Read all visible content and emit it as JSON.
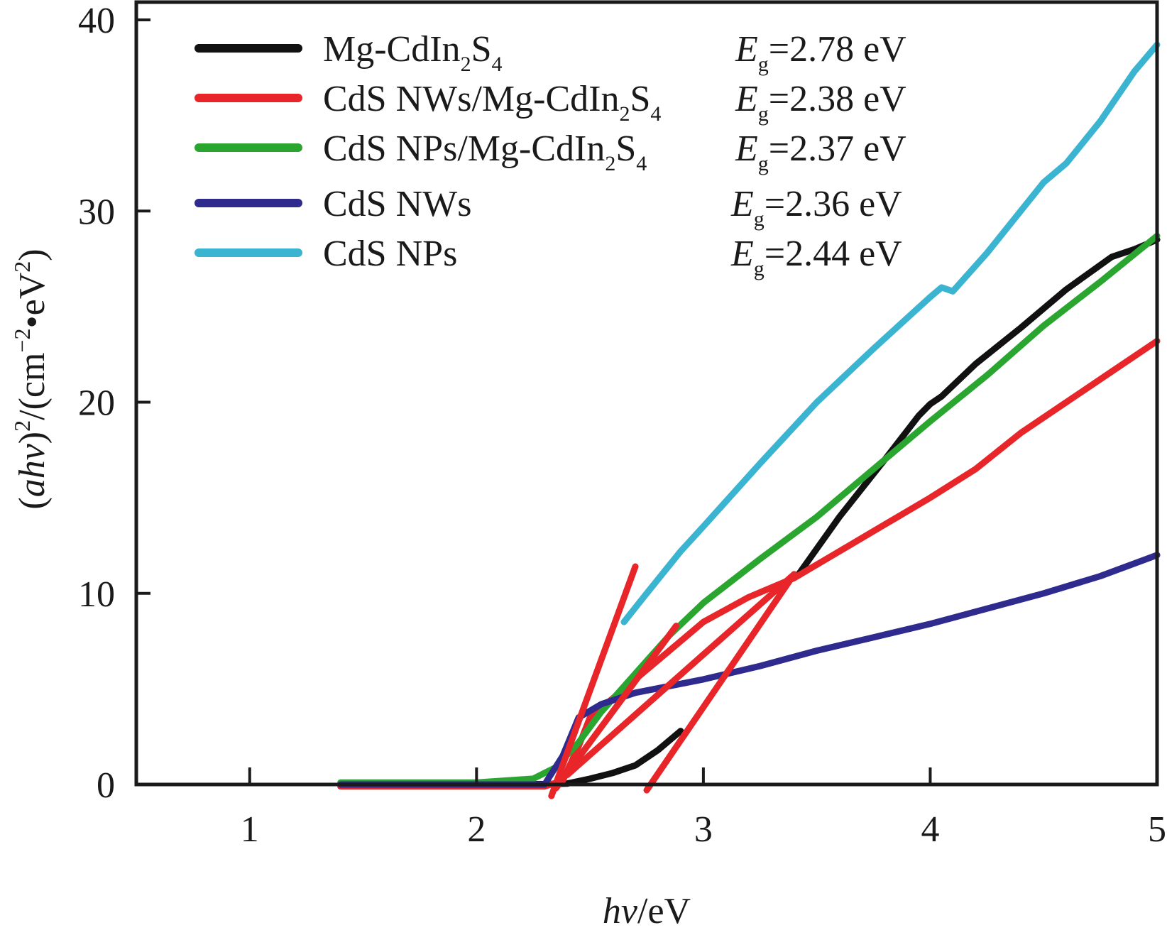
{
  "chart_data": {
    "type": "line",
    "title": "",
    "xlabel": "hv/eV",
    "xlabel_parts": {
      "italic": "hv",
      "rest": "/eV"
    },
    "ylabel": "(ahv)^2/(cm^-2·eV^2)",
    "ylabel_parts": {
      "open": "(",
      "italic": "ahv",
      "close": ")",
      "sup1": "2",
      "mid": "/(cm",
      "sup2": "−2",
      "dot": "•eV",
      "sup3": "2",
      "end": ")"
    },
    "xlim": [
      0.5,
      5
    ],
    "ylim": [
      0,
      40
    ],
    "xticks": [
      1,
      2,
      3,
      4,
      5
    ],
    "xtick_labels": [
      "1",
      "2",
      "3",
      "4",
      "5"
    ],
    "yticks": [
      0,
      10,
      20,
      30,
      40
    ],
    "ytick_labels": [
      "0",
      "10",
      "20",
      "30",
      "40"
    ],
    "grid": false,
    "legend_position": "top-left",
    "series": [
      {
        "name": "Mg-CdIn2S4",
        "label_base": "Mg-CdIn",
        "label_sub1": "2",
        "label_mid": "S",
        "label_sub2": "4",
        "label_rest": "",
        "bandgap_text": "=2.78 eV",
        "bandgap_eV": 2.78,
        "color": "#111111",
        "segments": [
          [
            [
              1.4,
              0.0
            ],
            [
              2.2,
              0.0
            ],
            [
              2.4,
              0.05
            ],
            [
              2.5,
              0.3
            ],
            [
              2.6,
              0.6
            ],
            [
              2.7,
              1.0
            ],
            [
              2.8,
              1.8
            ],
            [
              2.9,
              2.8
            ]
          ],
          [
            [
              3.42,
              11.0
            ],
            [
              3.6,
              14.0
            ],
            [
              3.8,
              17.0
            ],
            [
              3.95,
              19.3
            ],
            [
              4.0,
              19.9
            ],
            [
              4.05,
              20.3
            ],
            [
              4.2,
              22.0
            ],
            [
              4.4,
              23.9
            ],
            [
              4.6,
              25.9
            ],
            [
              4.8,
              27.6
            ],
            [
              4.9,
              28.0
            ],
            [
              5.0,
              28.5
            ]
          ]
        ]
      },
      {
        "name": "CdS NWs/Mg-CdIn2S4",
        "label_base": "CdS NWs/Mg-CdIn",
        "label_sub1": "2",
        "label_mid": "S",
        "label_sub2": "4",
        "label_rest": "",
        "bandgap_text": "=2.38 eV",
        "bandgap_eV": 2.38,
        "color": "#e8262a",
        "segments": [
          [
            [
              1.4,
              -0.1
            ],
            [
              2.3,
              -0.1
            ],
            [
              2.38,
              0.2
            ],
            [
              2.45,
              2.0
            ],
            [
              2.5,
              3.5
            ],
            [
              2.6,
              4.5
            ],
            [
              2.8,
              6.5
            ],
            [
              3.0,
              8.5
            ],
            [
              3.2,
              9.8
            ],
            [
              3.4,
              10.8
            ],
            [
              3.6,
              12.2
            ],
            [
              3.8,
              13.6
            ],
            [
              4.0,
              15.0
            ],
            [
              4.2,
              16.5
            ],
            [
              4.4,
              18.4
            ],
            [
              4.6,
              20.0
            ],
            [
              4.8,
              21.6
            ],
            [
              5.0,
              23.2
            ]
          ]
        ]
      },
      {
        "name": "CdS NPs/Mg-CdIn2S4",
        "label_base": "CdS NPs/Mg-CdIn",
        "label_sub1": "2",
        "label_mid": "S",
        "label_sub2": "4",
        "label_rest": "",
        "bandgap_text": "=2.37 eV",
        "bandgap_eV": 2.37,
        "color": "#2aa630",
        "segments": [
          [
            [
              1.4,
              0.1
            ],
            [
              2.0,
              0.1
            ],
            [
              2.25,
              0.3
            ],
            [
              2.35,
              0.9
            ],
            [
              2.45,
              2.2
            ],
            [
              2.55,
              3.8
            ],
            [
              2.7,
              5.8
            ],
            [
              2.85,
              7.8
            ],
            [
              3.0,
              9.5
            ],
            [
              3.25,
              11.8
            ],
            [
              3.5,
              14.0
            ],
            [
              3.75,
              16.5
            ],
            [
              4.0,
              19.0
            ],
            [
              4.25,
              21.4
            ],
            [
              4.5,
              24.0
            ],
            [
              4.75,
              26.3
            ],
            [
              5.0,
              28.7
            ]
          ]
        ]
      },
      {
        "name": "CdS NWs",
        "label_base": "CdS NWs",
        "label_sub1": "",
        "label_mid": "",
        "label_sub2": "",
        "label_rest": "",
        "bandgap_text": "=2.36 eV",
        "bandgap_eV": 2.36,
        "color": "#2e2a8e",
        "segments": [
          [
            [
              1.4,
              0.0
            ],
            [
              2.3,
              0.0
            ],
            [
              2.38,
              1.5
            ],
            [
              2.45,
              3.5
            ],
            [
              2.55,
              4.2
            ],
            [
              2.7,
              4.8
            ],
            [
              3.0,
              5.5
            ],
            [
              3.25,
              6.2
            ],
            [
              3.5,
              7.0
            ],
            [
              3.75,
              7.7
            ],
            [
              4.0,
              8.4
            ],
            [
              4.25,
              9.2
            ],
            [
              4.5,
              10.0
            ],
            [
              4.75,
              10.9
            ],
            [
              5.0,
              12.0
            ]
          ]
        ]
      },
      {
        "name": "CdS NPs",
        "label_base": "CdS NPs",
        "label_sub1": "",
        "label_mid": "",
        "label_sub2": "",
        "label_rest": "",
        "bandgap_text": "=2.44 eV",
        "bandgap_eV": 2.44,
        "color": "#3ab4d0",
        "segments": [
          [
            [
              2.65,
              8.5
            ],
            [
              2.75,
              10.0
            ],
            [
              2.9,
              12.2
            ],
            [
              3.0,
              13.5
            ],
            [
              3.25,
              16.8
            ],
            [
              3.5,
              20.0
            ],
            [
              3.75,
              22.8
            ],
            [
              4.0,
              25.5
            ],
            [
              4.05,
              26.0
            ],
            [
              4.1,
              25.8
            ],
            [
              4.25,
              27.8
            ],
            [
              4.5,
              31.5
            ],
            [
              4.6,
              32.5
            ],
            [
              4.75,
              34.7
            ],
            [
              4.9,
              37.3
            ],
            [
              5.0,
              38.7
            ]
          ]
        ]
      }
    ],
    "tangent_lines": {
      "color": "#e8262a",
      "lines": [
        [
          [
            2.33,
            -0.6
          ],
          [
            2.7,
            11.4
          ]
        ],
        [
          [
            2.35,
            -0.2
          ],
          [
            2.88,
            8.3
          ]
        ],
        [
          [
            2.4,
            0.5
          ],
          [
            3.4,
            11.0
          ]
        ],
        [
          [
            2.75,
            -0.3
          ],
          [
            3.4,
            11.0
          ]
        ]
      ]
    },
    "legend_subscript": "g",
    "legend_symbol": "E"
  }
}
